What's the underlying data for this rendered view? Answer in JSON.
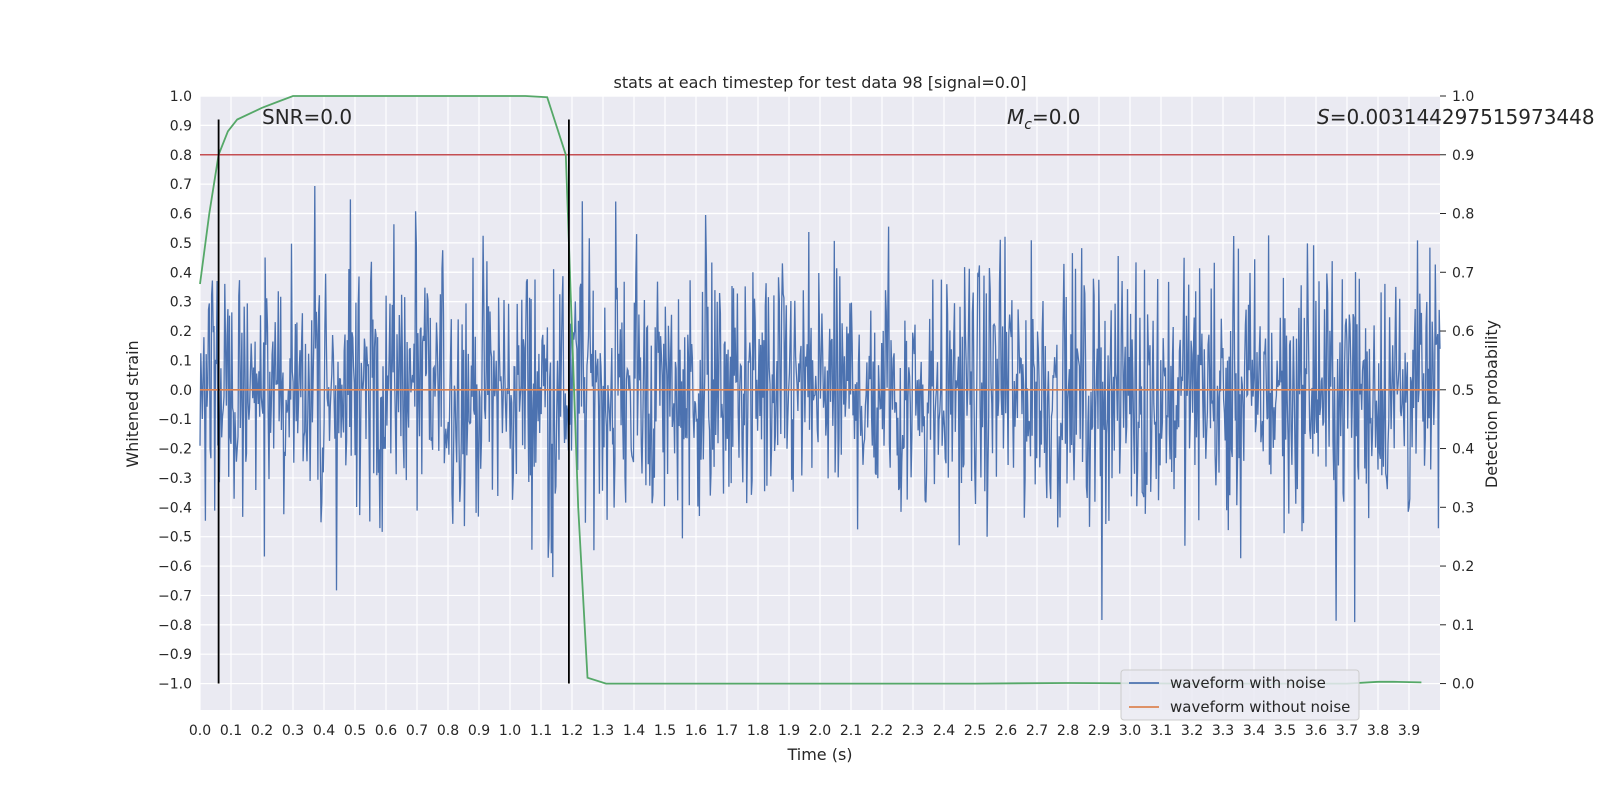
{
  "chart_data": {
    "type": "line",
    "title": "stats at each timestep for test data 98 [signal=0.0]",
    "xlabel": "Time (s)",
    "ylabel": "Whitened strain",
    "y2label": "Detection probability",
    "xlim": [
      0.0,
      4.0
    ],
    "ylim": [
      -1.09,
      1.0
    ],
    "y2lim": [
      -0.045,
      1.0
    ],
    "xticks": [
      "0.0",
      "0.1",
      "0.2",
      "0.3",
      "0.4",
      "0.5",
      "0.6",
      "0.7",
      "0.8",
      "0.9",
      "1.0",
      "1.1",
      "1.2",
      "1.3",
      "1.4",
      "1.5",
      "1.6",
      "1.7",
      "1.8",
      "1.9",
      "2.0",
      "2.1",
      "2.2",
      "2.3",
      "2.4",
      "2.5",
      "2.6",
      "2.7",
      "2.8",
      "2.9",
      "3.0",
      "3.1",
      "3.2",
      "3.3",
      "3.4",
      "3.5",
      "3.6",
      "3.7",
      "3.8",
      "3.9"
    ],
    "yticks": [
      "1.0",
      "0.9",
      "0.8",
      "0.7",
      "0.6",
      "0.5",
      "0.4",
      "0.3",
      "0.2",
      "0.1",
      "0.0",
      "−0.1",
      "−0.2",
      "−0.3",
      "−0.4",
      "−0.5",
      "−0.6",
      "−0.7",
      "−0.8",
      "−0.9",
      "−1.0"
    ],
    "y2ticks": [
      "1.0",
      "0.9",
      "0.8",
      "0.7",
      "0.6",
      "0.5",
      "0.4",
      "0.3",
      "0.2",
      "0.1",
      "0.0"
    ],
    "grid": true,
    "legend_position": "lower-right",
    "annotations": {
      "snr": "SNR=0.0",
      "mc_symbol": "M",
      "mc_sub": "c",
      "mc_value": "=0.0",
      "s_symbol": "S",
      "s_value": "=0.003144297515973448"
    },
    "series": [
      {
        "name": "waveform with noise",
        "color": "#4c72b0",
        "note_range": [
          -1.0,
          0.93
        ],
        "duration": 4.0
      },
      {
        "name": "waveform without noise",
        "color": "#dd8452",
        "x": [
          0.0,
          4.0
        ],
        "y": [
          0.0,
          0.0
        ]
      },
      {
        "color": "#55a868",
        "axis": "right",
        "x": [
          0.0,
          0.03,
          0.06,
          0.09,
          0.12,
          0.2,
          0.25,
          0.3,
          0.35,
          0.4,
          0.6,
          0.8,
          1.0,
          1.05,
          1.12,
          1.18,
          1.2,
          1.22,
          1.25,
          1.31,
          1.4,
          1.6,
          2.0,
          2.5,
          2.8,
          3.2,
          3.5,
          3.7,
          3.8,
          3.85,
          3.94
        ],
        "y": [
          0.68,
          0.8,
          0.9,
          0.94,
          0.96,
          0.98,
          0.99,
          1.0,
          1.0,
          1.0,
          1.0,
          1.0,
          1.0,
          1.0,
          0.998,
          0.9,
          0.6,
          0.3,
          0.01,
          0.0,
          0.0,
          0.0,
          0.0,
          0.0,
          0.001,
          0.0,
          0.0,
          0.0,
          0.003,
          0.003,
          0.002
        ]
      },
      {
        "color": "#c44e52",
        "axis": "right",
        "x": [
          0.0,
          4.0
        ],
        "y": [
          0.9,
          0.9
        ]
      }
    ],
    "vlines": [
      {
        "x": 0.06,
        "ymin": -1.0,
        "ymax": 0.92,
        "color": "#000000"
      },
      {
        "x": 1.19,
        "ymin": -1.0,
        "ymax": 0.92,
        "color": "#000000"
      }
    ]
  }
}
